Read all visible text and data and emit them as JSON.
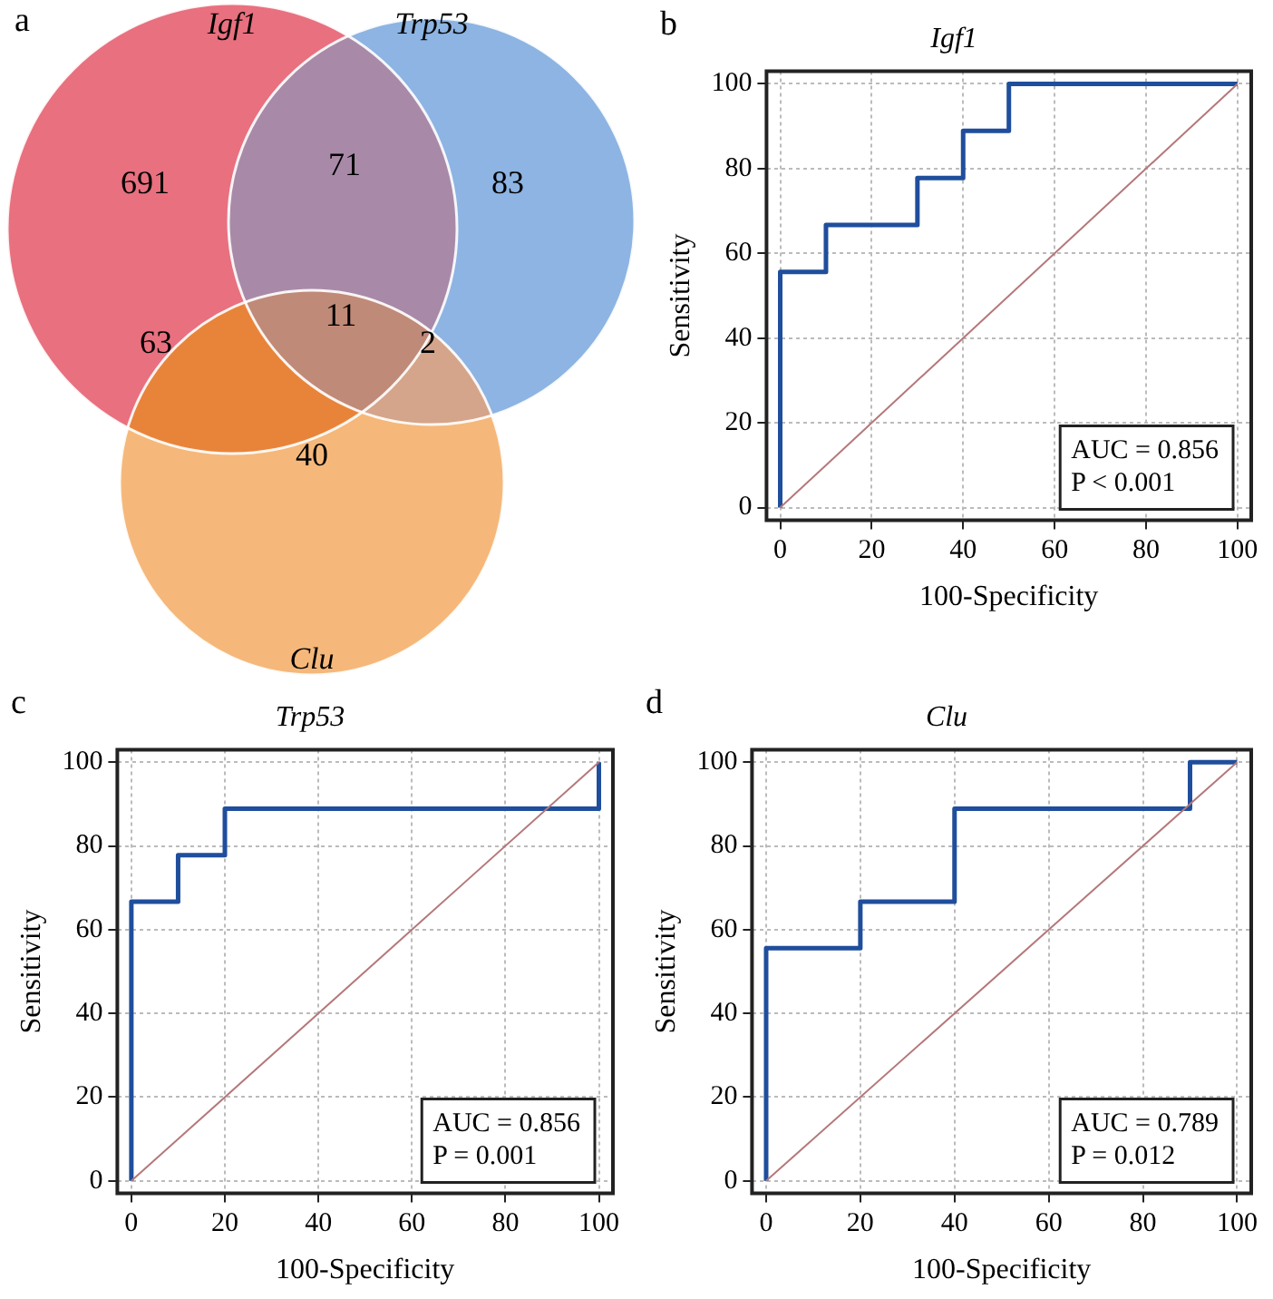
{
  "chart_data": [
    {
      "type": "other",
      "annotations": [
        "a",
        "Igf1",
        "Trp53",
        "Clu",
        "691",
        "83",
        "40",
        "71",
        "63",
        "2",
        "11"
      ],
      "colors": [
        "#e8707f",
        "#8db4e2",
        "#f5b87a",
        "#a88aa8",
        "#e8843a",
        "#d4a58a",
        "#c08a78"
      ]
    },
    {
      "type": "line",
      "title": "Igf1",
      "xlabel": "100-Specificity",
      "ylabel": "Sensitivity",
      "xlim": [
        -3,
        103
      ],
      "ylim": [
        -3,
        103
      ],
      "xticks": [
        0,
        20,
        40,
        60,
        80,
        100
      ],
      "yticks": [
        0,
        20,
        40,
        60,
        80,
        100
      ],
      "grid": true,
      "marker": "none",
      "annotations": [
        "b",
        "AUC = 0.856",
        "P < 0.001"
      ],
      "series": [
        {
          "color": "#1f4e9c",
          "x": [
            0,
            0,
            10,
            10,
            30,
            30,
            40,
            40,
            50,
            50,
            100
          ],
          "values": [
            0,
            55.6,
            55.6,
            66.7,
            66.7,
            77.8,
            77.8,
            88.9,
            88.9,
            100,
            100
          ]
        },
        {
          "color": "#b5787a",
          "x": [
            0,
            100
          ],
          "values": [
            0,
            100
          ]
        }
      ]
    },
    {
      "type": "line",
      "title": "Trp53",
      "xlabel": "100-Specificity",
      "ylabel": "Sensitivity",
      "xlim": [
        -3,
        103
      ],
      "ylim": [
        -3,
        103
      ],
      "xticks": [
        0,
        20,
        40,
        60,
        80,
        100
      ],
      "yticks": [
        0,
        20,
        40,
        60,
        80,
        100
      ],
      "grid": true,
      "marker": "none",
      "annotations": [
        "c",
        "AUC = 0.856",
        "P = 0.001"
      ],
      "series": [
        {
          "color": "#1f4e9c",
          "x": [
            0,
            0,
            10,
            10,
            20,
            20,
            100,
            100
          ],
          "values": [
            0,
            66.7,
            66.7,
            77.8,
            77.8,
            88.9,
            88.9,
            100
          ]
        },
        {
          "color": "#b5787a",
          "x": [
            0,
            100
          ],
          "values": [
            0,
            100
          ]
        }
      ]
    },
    {
      "type": "line",
      "title": "Clu",
      "xlabel": "100-Specificity",
      "ylabel": "Sensitivity",
      "xlim": [
        -3,
        103
      ],
      "ylim": [
        -3,
        103
      ],
      "xticks": [
        0,
        20,
        40,
        60,
        80,
        100
      ],
      "yticks": [
        0,
        20,
        40,
        60,
        80,
        100
      ],
      "grid": true,
      "marker": "none",
      "annotations": [
        "d",
        "AUC = 0.789",
        "P = 0.012"
      ],
      "series": [
        {
          "color": "#1f4e9c",
          "x": [
            0,
            0,
            20,
            20,
            40,
            40,
            90,
            90,
            100
          ],
          "values": [
            0,
            55.6,
            55.6,
            66.7,
            66.7,
            88.9,
            88.9,
            100,
            100
          ]
        },
        {
          "color": "#b5787a",
          "x": [
            0,
            100
          ],
          "values": [
            0,
            100
          ]
        }
      ]
    }
  ]
}
